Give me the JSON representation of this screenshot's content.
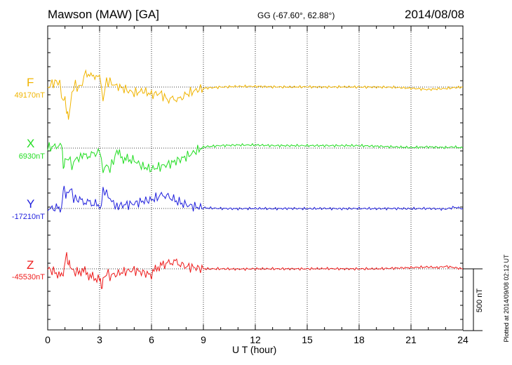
{
  "header": {
    "station": "Mawson (MAW)  [GA]",
    "coords": "GG (-67.60°,  62.88°)",
    "date": "2014/08/08"
  },
  "plotted_note": "Plotted at 2014/09/08 02:12 UT",
  "scale_label": "500 nT",
  "chart_data": {
    "type": "line",
    "xlabel": "U T (hour)",
    "xlim": [
      0,
      24
    ],
    "x_ticks": [
      0,
      3,
      6,
      9,
      12,
      15,
      18,
      21,
      24
    ],
    "x_tick_labels": [
      "0",
      "3",
      "6",
      "9",
      "12",
      "15",
      "18",
      "21",
      "24"
    ],
    "grid": true,
    "units": "nT",
    "scale_bar_nT": 500,
    "series": [
      {
        "name": "F",
        "baseline_label": "49170nT",
        "color": "#f0b400",
        "baseline": 49170,
        "x": [
          0,
          0.5,
          0.7,
          0.9,
          1.0,
          1.1,
          1.2,
          1.4,
          1.6,
          1.8,
          2.0,
          2.2,
          2.5,
          2.8,
          3.0,
          3.2,
          3.4,
          3.6,
          3.8,
          4.0,
          4.5,
          5.0,
          5.5,
          6.0,
          6.5,
          7.0,
          7.3,
          7.6,
          8.0,
          8.5,
          9.0,
          10,
          11,
          12,
          13,
          14,
          15,
          16,
          17,
          18,
          19,
          20,
          21,
          22,
          22.5,
          23,
          23.5,
          24
        ],
        "values": [
          49170,
          49220,
          49190,
          49050,
          49080,
          48980,
          48890,
          49130,
          49190,
          49160,
          49200,
          49300,
          49250,
          49270,
          49260,
          49070,
          49220,
          49210,
          49190,
          49180,
          49150,
          49120,
          49140,
          49110,
          49120,
          49060,
          49080,
          49070,
          49110,
          49140,
          49160,
          49170,
          49175,
          49175,
          49172,
          49170,
          49172,
          49170,
          49171,
          49170,
          49170,
          49168,
          49160,
          49150,
          49155,
          49158,
          49165,
          49170
        ]
      },
      {
        "name": "X",
        "baseline_label": "6930nT",
        "color": "#22dd22",
        "baseline": 6930,
        "x": [
          0,
          0.5,
          0.8,
          0.9,
          1.0,
          1.2,
          1.4,
          1.6,
          1.8,
          2.0,
          2.3,
          2.6,
          3.0,
          3.2,
          3.4,
          3.6,
          3.8,
          4.0,
          4.3,
          4.6,
          5.0,
          5.5,
          6.0,
          6.5,
          7.0,
          7.5,
          8.0,
          8.5,
          9.0,
          10,
          11,
          12,
          13,
          14,
          15,
          16,
          17,
          18,
          19,
          20,
          21,
          22,
          23,
          23.5,
          24
        ],
        "values": [
          6930,
          6950,
          6940,
          6790,
          6820,
          6860,
          6780,
          6840,
          6850,
          6860,
          6870,
          6880,
          6900,
          6750,
          6790,
          6760,
          6830,
          6900,
          6850,
          6840,
          6830,
          6780,
          6760,
          6780,
          6800,
          6830,
          6860,
          6900,
          6940,
          6950,
          6955,
          6955,
          6950,
          6950,
          6950,
          6950,
          6950,
          6950,
          6945,
          6940,
          6935,
          6940,
          6935,
          6940,
          6930
        ]
      },
      {
        "name": "Y",
        "baseline_label": "-17210nT",
        "color": "#1f1fdd",
        "baseline": -17210,
        "x": [
          0,
          0.5,
          0.8,
          0.9,
          1.0,
          1.1,
          1.3,
          1.5,
          1.7,
          2.0,
          2.3,
          2.6,
          3.0,
          3.1,
          3.2,
          3.4,
          3.6,
          3.8,
          4.0,
          4.5,
          5.0,
          5.5,
          6.0,
          6.5,
          6.8,
          7.2,
          7.6,
          8.0,
          8.5,
          9.0,
          10,
          11,
          12,
          13,
          14,
          15,
          16,
          17,
          18,
          19,
          20,
          21,
          22,
          23,
          23.5,
          24
        ],
        "values": [
          -17210,
          -17210,
          -17200,
          -17050,
          -17080,
          -17090,
          -17050,
          -17120,
          -17140,
          -17150,
          -17160,
          -17170,
          -17180,
          -17200,
          -17050,
          -17090,
          -17130,
          -17170,
          -17190,
          -17180,
          -17170,
          -17150,
          -17140,
          -17110,
          -17100,
          -17130,
          -17160,
          -17180,
          -17195,
          -17205,
          -17210,
          -17212,
          -17210,
          -17212,
          -17210,
          -17212,
          -17210,
          -17212,
          -17210,
          -17212,
          -17210,
          -17212,
          -17210,
          -17215,
          -17200,
          -17210
        ]
      },
      {
        "name": "Z",
        "baseline_label": "-45530nT",
        "color": "#ee1c1c",
        "baseline": -45530,
        "x": [
          0,
          0.5,
          0.8,
          0.9,
          1.0,
          1.1,
          1.2,
          1.3,
          1.5,
          1.7,
          2.0,
          2.3,
          2.6,
          3.0,
          3.1,
          3.2,
          3.4,
          3.6,
          4.0,
          4.5,
          5.0,
          5.5,
          6.0,
          6.3,
          6.6,
          7.0,
          7.3,
          7.6,
          8.0,
          8.5,
          9.0,
          10,
          11,
          12,
          13,
          14,
          15,
          16,
          17,
          18,
          19,
          20,
          21,
          22,
          22.5,
          23,
          23.5,
          24
        ],
        "values": [
          -45530,
          -45560,
          -45600,
          -45570,
          -45470,
          -45420,
          -45480,
          -45520,
          -45550,
          -45560,
          -45540,
          -45570,
          -45600,
          -45620,
          -45680,
          -45620,
          -45560,
          -45590,
          -45570,
          -45550,
          -45540,
          -45560,
          -45580,
          -45520,
          -45500,
          -45480,
          -45470,
          -45490,
          -45510,
          -45520,
          -45530,
          -45530,
          -45532,
          -45530,
          -45530,
          -45530,
          -45530,
          -45528,
          -45530,
          -45530,
          -45530,
          -45525,
          -45520,
          -45515,
          -45520,
          -45510,
          -45520,
          -45530
        ]
      }
    ]
  }
}
